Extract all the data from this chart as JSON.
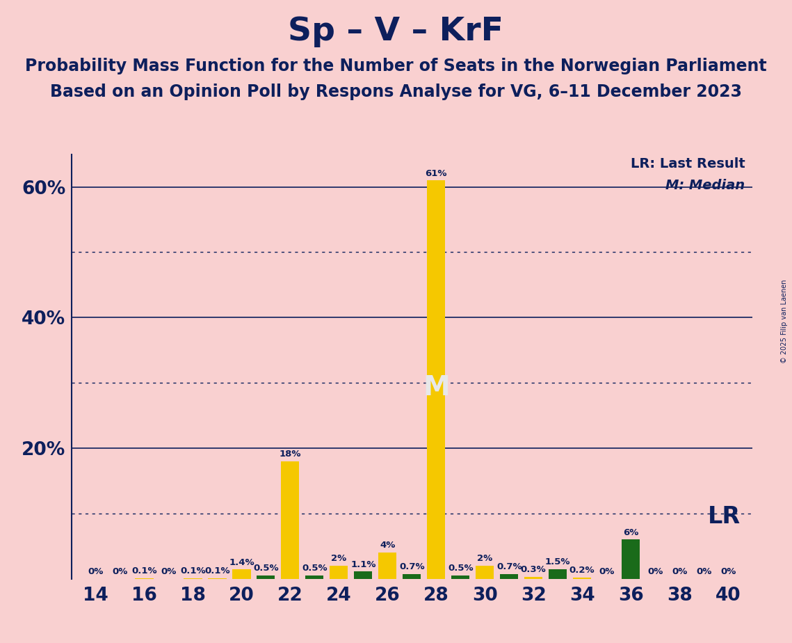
{
  "title": "Sp – V – KrF",
  "subtitle1": "Probability Mass Function for the Number of Seats in the Norwegian Parliament",
  "subtitle2": "Based on an Opinion Poll by Respons Analyse for VG, 6–11 December 2023",
  "copyright": "© 2025 Filip van Laenen",
  "background_color": "#f9d0d0",
  "bar_color_yellow": "#f5c800",
  "bar_color_green": "#1a6b1a",
  "title_color": "#0d1f5c",
  "seats": [
    14,
    15,
    16,
    17,
    18,
    19,
    20,
    21,
    22,
    23,
    24,
    25,
    26,
    27,
    28,
    29,
    30,
    31,
    32,
    33,
    34,
    35,
    36,
    37,
    38,
    39,
    40
  ],
  "values": [
    0.0,
    0.0,
    0.1,
    0.0,
    0.1,
    0.1,
    1.4,
    0.5,
    18.0,
    0.5,
    2.0,
    1.1,
    4.0,
    0.7,
    61.0,
    0.5,
    2.0,
    0.7,
    0.3,
    1.5,
    0.2,
    0.0,
    6.0,
    0.0,
    0.0,
    0.0,
    0.0
  ],
  "colors": [
    "#f5c800",
    "#f5c800",
    "#f5c800",
    "#f5c800",
    "#f5c800",
    "#f5c800",
    "#f5c800",
    "#1a6b1a",
    "#f5c800",
    "#1a6b1a",
    "#f5c800",
    "#1a6b1a",
    "#f5c800",
    "#1a6b1a",
    "#f5c800",
    "#1a6b1a",
    "#f5c800",
    "#1a6b1a",
    "#f5c800",
    "#1a6b1a",
    "#f5c800",
    "#1a6b1a",
    "#1a6b1a",
    "#1a6b1a",
    "#f5c800",
    "#1a6b1a",
    "#f5c800"
  ],
  "labels": [
    "0%",
    "0%",
    "0.1%",
    "0%",
    "0.1%",
    "0.1%",
    "1.4%",
    "0.5%",
    "18%",
    "0.5%",
    "2%",
    "1.1%",
    "4%",
    "0.7%",
    "61%",
    "0.5%",
    "2%",
    "0.7%",
    "0.3%",
    "1.5%",
    "0.2%",
    "0%",
    "6%",
    "0%",
    "0%",
    "0%",
    "0%"
  ],
  "median_seat": 28,
  "lr_seat": 36,
  "ylim_max": 65,
  "solid_yticks": [
    20,
    40,
    60
  ],
  "dotted_yticks": [
    10,
    30,
    50
  ],
  "ytick_labels": {
    "20": "20%",
    "40": "40%",
    "60": "60%"
  },
  "xmin": 13.0,
  "xmax": 41.0,
  "bar_width": 0.75
}
